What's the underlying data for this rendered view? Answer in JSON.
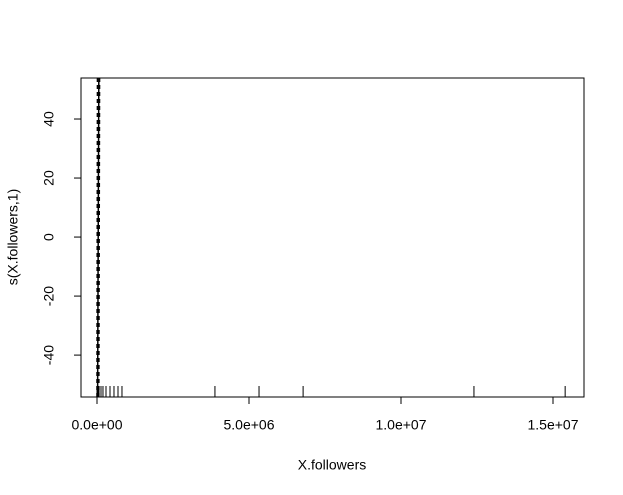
{
  "chart_data": {
    "type": "line",
    "xlabel": "X.followers",
    "ylabel": "s(X.followers,1)",
    "xlim": [
      -526000,
      16020000
    ],
    "ylim": [
      -54.2,
      53.9
    ],
    "xticks": [
      {
        "value": 0,
        "label": "0.0e+00"
      },
      {
        "value": 5000000,
        "label": "5.0e+06"
      },
      {
        "value": 10000000,
        "label": "1.0e+07"
      },
      {
        "value": 15000000,
        "label": "1.5e+07"
      }
    ],
    "yticks": [
      -40,
      -20,
      0,
      20,
      40
    ],
    "series": [
      {
        "color": "#000000",
        "style": "solid",
        "x": [
          20000,
          60000
        ],
        "values": [
          -54.2,
          53.9
        ]
      },
      {
        "color": "#000000",
        "style": "dashed",
        "x": [
          0,
          15000
        ],
        "values": [
          -54.2,
          53.9
        ]
      },
      {
        "color": "#000000",
        "style": "dashed",
        "x": [
          60000,
          85000
        ],
        "values": [
          -54.2,
          53.9
        ]
      }
    ],
    "rug": [
      0,
      20000,
      40000,
      66000,
      132000,
      197000,
      296000,
      428000,
      559000,
      691000,
      822000,
      3880000,
      5330000,
      6780000,
      12400000,
      15400000
    ]
  }
}
